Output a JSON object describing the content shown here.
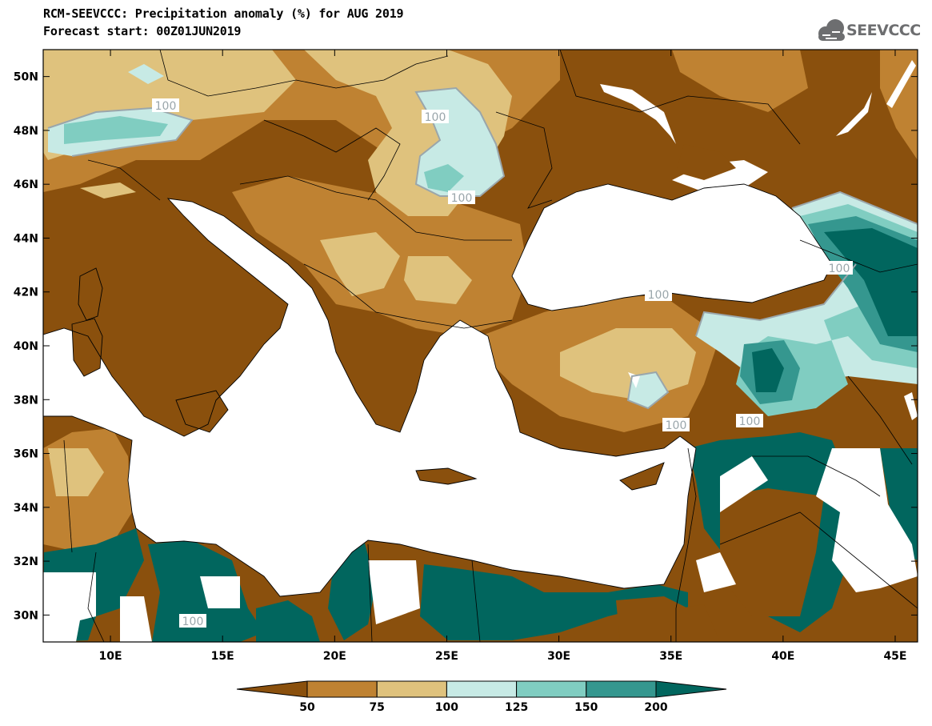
{
  "title_line1": "RCM-SEEVCCC: Precipitation anomaly (%) for AUG 2019",
  "title_line2": "Forecast start: 00Z01JUN2019",
  "logo_text": "SEEVCCC",
  "map": {
    "lon_range": [
      7,
      46
    ],
    "lat_range": [
      29,
      51
    ],
    "lon_ticks": [
      "10E",
      "15E",
      "20E",
      "25E",
      "30E",
      "35E",
      "40E",
      "45E"
    ],
    "lat_ticks": [
      "30N",
      "32N",
      "34N",
      "36N",
      "38N",
      "40N",
      "42N",
      "44N",
      "46N",
      "48N",
      "50N"
    ],
    "contour_labels": [
      "100",
      "100",
      "100",
      "100",
      "100",
      "100",
      "100",
      "100"
    ]
  },
  "colorbar": {
    "levels": [
      "50",
      "75",
      "100",
      "125",
      "150",
      "200"
    ],
    "colors": [
      "#8a500d",
      "#bf8232",
      "#dfc27d",
      "#c7eae5",
      "#80cdc1",
      "#35978f",
      "#01665e"
    ]
  }
}
